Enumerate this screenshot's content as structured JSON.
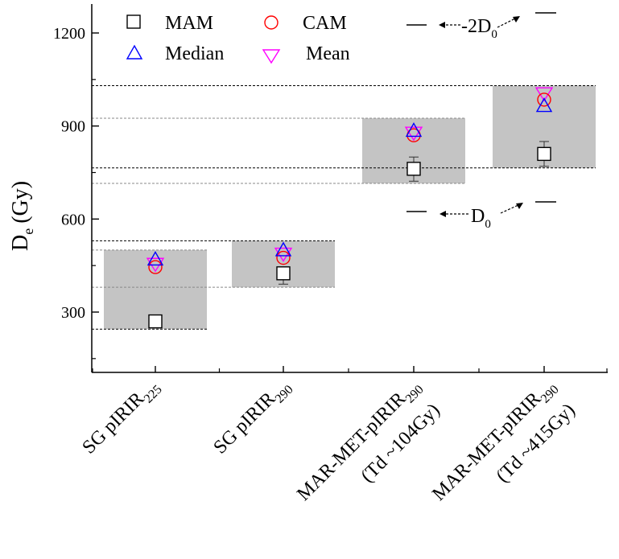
{
  "chart_data": {
    "type": "scatter",
    "ylabel": "D",
    "ylabel_sub": "e",
    "ylabel_unit": "(Gy)",
    "ylim": [
      130,
      1300
    ],
    "yticks": [
      300,
      600,
      900,
      1200
    ],
    "grid": false,
    "legend_placement": "top-left",
    "categories": [
      {
        "line1": "SG pIRIR",
        "sub1": "225",
        "line2": ""
      },
      {
        "line1": "SG pIRIR",
        "sub1": "290",
        "line2": ""
      },
      {
        "line1": "MAR-MET-pIRIR",
        "sub1": "290",
        "line2": "(Td ~104Gy)"
      },
      {
        "line1": "MAR-MET-pIRIR",
        "sub1": "290",
        "line2": "(Td ~415Gy)"
      }
    ],
    "series": [
      {
        "name": "MAM",
        "marker": "square",
        "color": "#000000",
        "values": [
          270,
          425,
          762,
          810
        ],
        "err": [
          [
            null,
            null
          ],
          [
            390,
            null
          ],
          [
            722,
            800
          ],
          [
            770,
            850
          ]
        ]
      },
      {
        "name": "CAM",
        "marker": "circle",
        "color": "#ff0000",
        "values": [
          445,
          475,
          870,
          985
        ]
      },
      {
        "name": "Median",
        "marker": "triangle-up",
        "color": "#0000ff",
        "values": [
          470,
          500,
          885,
          965
        ]
      },
      {
        "name": "Mean",
        "marker": "triangle-down",
        "color": "#ff00ff",
        "values": [
          455,
          488,
          878,
          1005
        ]
      }
    ],
    "bands": [
      {
        "category": 0,
        "low": 245,
        "high": 500
      },
      {
        "category": 1,
        "low": 380,
        "high": 530
      },
      {
        "category": 2,
        "low": 715,
        "high": 925
      },
      {
        "category": 3,
        "low": 765,
        "high": 1030
      }
    ],
    "reference_lines": [
      245,
      380,
      500,
      530,
      715,
      765,
      925,
      1030
    ],
    "annotations": [
      {
        "base": "-2D",
        "sub": "0"
      },
      {
        "base": "D",
        "sub": "0"
      }
    ]
  }
}
